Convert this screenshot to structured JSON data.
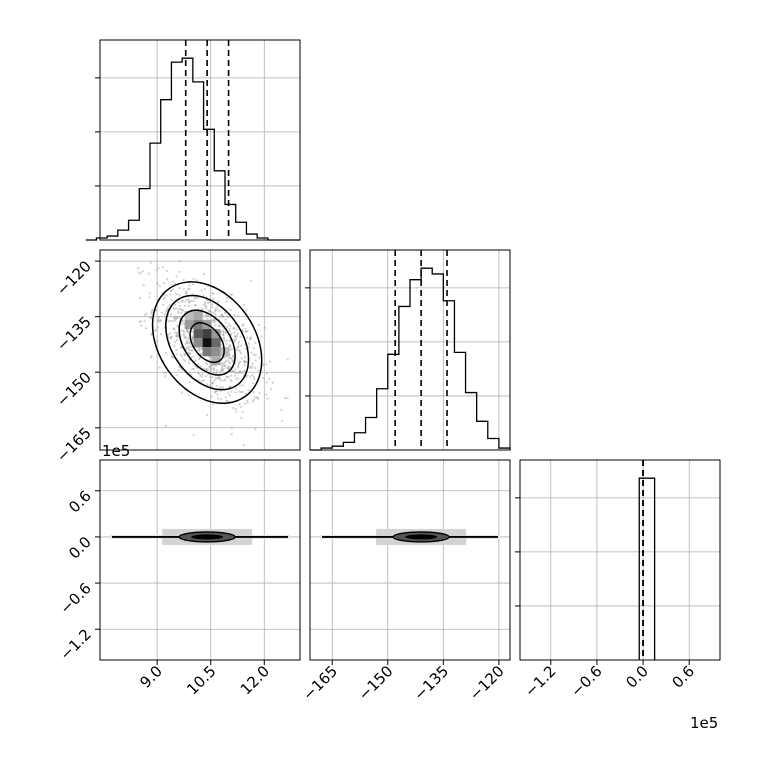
{
  "chart_data": {
    "type": "corner",
    "grid": true,
    "parameters": [
      {
        "range": [
          7.4,
          13.0
        ],
        "ticks": [
          9.0,
          10.5,
          12.0
        ],
        "tick_labels": [
          "9.0",
          "10.5",
          "12.0"
        ],
        "quantiles": [
          9.8,
          10.4,
          11.0
        ]
      },
      {
        "range": [
          -171,
          -117
        ],
        "ticks": [
          -165,
          -150,
          -135,
          -120
        ],
        "tick_labels": [
          "−165",
          "−150",
          "−135",
          "−120"
        ],
        "quantiles": [
          -148,
          -141,
          -134
        ]
      },
      {
        "range": [
          -1.6,
          1.0
        ],
        "ticks": [
          -1.2,
          -0.6,
          0.0,
          0.6
        ],
        "tick_labels": [
          "−1.2",
          "−0.6",
          "0.0",
          "0.6"
        ],
        "quantiles": [
          0.0,
          0.0,
          0.0
        ],
        "offset_label": "1e5"
      }
    ],
    "histograms": [
      {
        "bin_edges": [
          7.0,
          7.3,
          7.6,
          7.9,
          8.2,
          8.5,
          8.8,
          9.1,
          9.4,
          9.7,
          10.0,
          10.3,
          10.6,
          10.9,
          11.2,
          11.5,
          11.8,
          12.1,
          12.4,
          12.7,
          13.0
        ],
        "counts": [
          0,
          1,
          2,
          5,
          10,
          26,
          49,
          71,
          90,
          92,
          80,
          56,
          35,
          18,
          9,
          3,
          1,
          0,
          0,
          0
        ]
      },
      {
        "bin_edges": [
          -171,
          -168,
          -165,
          -162,
          -159,
          -156,
          -153,
          -150,
          -147,
          -144,
          -141,
          -138,
          -135,
          -132,
          -129,
          -126,
          -123,
          -120,
          -117
        ],
        "counts": [
          0,
          1,
          2,
          4,
          9,
          17,
          32,
          50,
          75,
          89,
          95,
          92,
          78,
          51,
          30,
          15,
          6,
          1
        ]
      },
      {
        "bin_edges": [
          -0.05,
          0.05,
          0.15
        ],
        "counts": [
          1,
          1
        ]
      }
    ],
    "scatter_panels": [
      {
        "x_param": 0,
        "y_param": 1,
        "x_mean": 10.4,
        "y_mean": -142,
        "x_std": 0.75,
        "y_std": 8.5
      },
      {
        "x_param": 0,
        "y_param": 2,
        "x_mean": 10.4,
        "y_mean": 0.0
      },
      {
        "x_param": 1,
        "y_param": 2,
        "x_mean": -141,
        "y_mean": 0.0
      }
    ]
  }
}
